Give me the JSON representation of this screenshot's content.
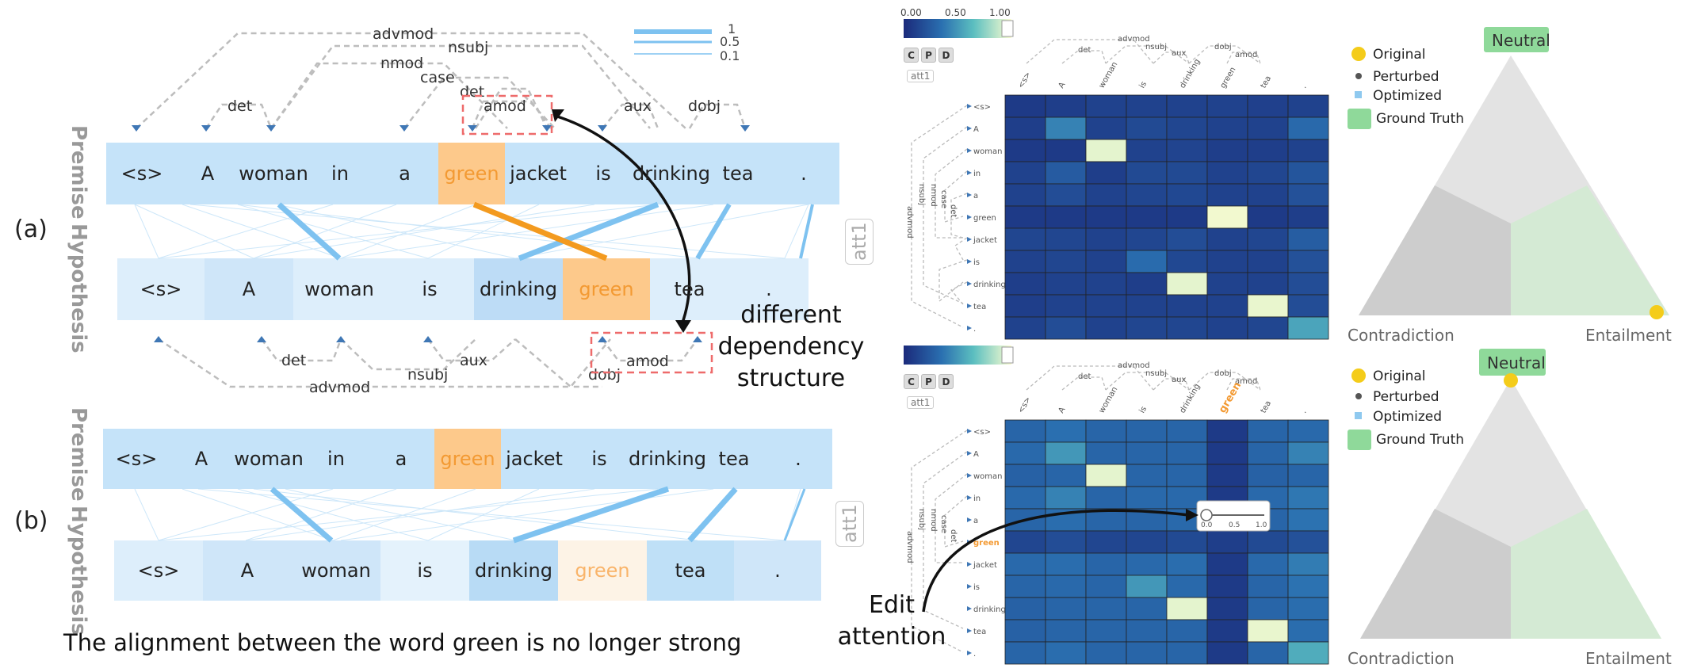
{
  "panels": {
    "a": "(a)",
    "b": "(b)"
  },
  "side_labels": {
    "premise": "Premise",
    "hypothesis": "Hypothesis"
  },
  "att_badge": "att1",
  "premise_tokens": [
    "<s>",
    "A",
    "woman",
    "in",
    "a",
    "green",
    "jacket",
    "is",
    "drinking",
    "tea",
    "."
  ],
  "hypothesis_tokens": [
    "<s>",
    "A",
    "woman",
    "is",
    "drinking",
    "green",
    "tea",
    "."
  ],
  "premise_arcs": [
    "advmod",
    "nsubj",
    "nmod",
    "case",
    "det",
    "det",
    "amod",
    "aux",
    "dobj"
  ],
  "hypothesis_arcs": [
    "det",
    "aux",
    "nsubj",
    "amod",
    "advmod",
    "dobj"
  ],
  "weight_legend": [
    "1",
    "0.5",
    "0.1"
  ],
  "annotation_a": "different dependency structure",
  "annotation_a_lines": [
    "different",
    "dependency",
    "structure"
  ],
  "caption_b": "The alignment between the word green is no longer strong",
  "edit_note_lines": [
    "Edit",
    "attention"
  ],
  "colorbar": {
    "min": "0.00",
    "mid": "0.50",
    "max": "1.00"
  },
  "heatmap_buttons": [
    "C",
    "P",
    "D"
  ],
  "heatmap_att": "att1",
  "heatmap_cols": [
    "<s>",
    "A",
    "woman",
    "is",
    "drinking",
    "green",
    "tea",
    "."
  ],
  "heatmap_rows": [
    "<s>",
    "A",
    "woman",
    "in",
    "a",
    "green",
    "jacket",
    "is",
    "drinking",
    "tea",
    "."
  ],
  "heatmap_top_arcs": [
    "advmod",
    "det",
    "nsubj",
    "aux",
    "dobj",
    "amod"
  ],
  "heatmap_left_arcs": [
    "advmod",
    "nsubj",
    "nmod",
    "case",
    "det",
    "amod",
    "det",
    "aux",
    "dobj"
  ],
  "slider_ticks": [
    "0.0",
    "0.5",
    "1.0"
  ],
  "triangle": {
    "top": "Neutral",
    "left": "Contradiction",
    "right": "Entailment"
  },
  "triangle_legend": [
    "Original",
    "Perturbed",
    "Optimized",
    "Ground Truth"
  ],
  "colors": {
    "token_bg": "#c5e3f9",
    "highlight_orange": "#fdc98b",
    "highlight_orange_pale": "#fdf3e6",
    "orange_text": "#f39a33",
    "line_blue": "#7ec2f0",
    "line_orange": "#f39a1f",
    "arc_gray": "#bdbdbd",
    "arrow_blue": "#3f77b5",
    "red_dashed": "#ee6b6b",
    "neutral_green": "#8fd99a",
    "tri_light": "#e3e3e3",
    "tri_mid": "#cdcdcd",
    "tri_green": "#d4ead4",
    "original_dot": "#f4cc1a"
  },
  "heatmap_top_values": [
    [
      0.08,
      0.1,
      0.12,
      0.12,
      0.12,
      0.12,
      0.11,
      0.12
    ],
    [
      0.1,
      0.42,
      0.12,
      0.16,
      0.14,
      0.12,
      0.12,
      0.32
    ],
    [
      0.08,
      0.08,
      0.95,
      0.12,
      0.13,
      0.1,
      0.1,
      0.12
    ],
    [
      0.12,
      0.25,
      0.1,
      0.16,
      0.16,
      0.12,
      0.14,
      0.22
    ],
    [
      0.12,
      0.18,
      0.12,
      0.14,
      0.15,
      0.12,
      0.12,
      0.2
    ],
    [
      0.08,
      0.08,
      0.08,
      0.08,
      0.08,
      0.98,
      0.08,
      0.1
    ],
    [
      0.14,
      0.14,
      0.12,
      0.14,
      0.18,
      0.12,
      0.14,
      0.26
    ],
    [
      0.12,
      0.14,
      0.12,
      0.33,
      0.15,
      0.12,
      0.12,
      0.2
    ],
    [
      0.1,
      0.12,
      0.12,
      0.1,
      0.95,
      0.12,
      0.12,
      0.18
    ],
    [
      0.1,
      0.12,
      0.12,
      0.12,
      0.12,
      0.12,
      0.96,
      0.18
    ],
    [
      0.12,
      0.18,
      0.12,
      0.14,
      0.14,
      0.12,
      0.14,
      0.55
    ]
  ],
  "heatmap_bottom_values": [
    [
      0.3,
      0.35,
      0.3,
      0.3,
      0.3,
      0.08,
      0.3,
      0.32
    ],
    [
      0.32,
      0.5,
      0.3,
      0.3,
      0.3,
      0.08,
      0.3,
      0.42
    ],
    [
      0.28,
      0.3,
      0.95,
      0.3,
      0.3,
      0.08,
      0.28,
      0.3
    ],
    [
      0.32,
      0.42,
      0.3,
      0.32,
      0.32,
      0.08,
      0.32,
      0.38
    ],
    [
      0.3,
      0.34,
      0.3,
      0.3,
      0.32,
      0.08,
      0.3,
      0.36
    ],
    [
      0.14,
      0.18,
      0.14,
      0.14,
      0.16,
      0.1,
      0.16,
      0.2
    ],
    [
      0.32,
      0.34,
      0.3,
      0.32,
      0.34,
      0.08,
      0.32,
      0.4
    ],
    [
      0.3,
      0.32,
      0.3,
      0.5,
      0.32,
      0.08,
      0.3,
      0.36
    ],
    [
      0.28,
      0.3,
      0.3,
      0.3,
      0.95,
      0.08,
      0.3,
      0.34
    ],
    [
      0.28,
      0.3,
      0.3,
      0.3,
      0.3,
      0.08,
      0.96,
      0.34
    ],
    [
      0.3,
      0.34,
      0.3,
      0.3,
      0.3,
      0.08,
      0.3,
      0.58
    ]
  ]
}
